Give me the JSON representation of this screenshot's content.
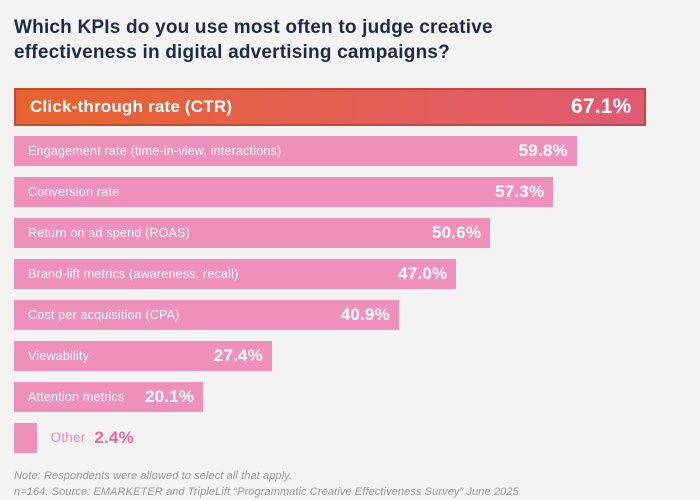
{
  "title": "Which KPIs do you use most often to judge creative effectiveness in digital advertising campaigns?",
  "chart_data": {
    "type": "bar",
    "orientation": "horizontal",
    "title": "Which KPIs do you use most often to judge creative effectiveness in digital advertising campaigns?",
    "categories": [
      "Click-through rate (CTR)",
      "Engagement rate (time-in-view, interactions)",
      "Conversion rate",
      "Return on ad spend (ROAS)",
      "Brand-lift metrics (awareness, recall)",
      "Cost per acquisition (CPA)",
      "Viewability",
      "Attention metrics",
      "Other"
    ],
    "values": [
      67.1,
      59.8,
      57.3,
      50.6,
      47.0,
      40.9,
      27.4,
      20.1,
      2.4
    ],
    "value_labels": [
      "67.1%",
      "59.8%",
      "57.3%",
      "50.6%",
      "47.0%",
      "40.9%",
      "27.4%",
      "20.1%",
      "2.4%"
    ],
    "axis_max": 71.4,
    "highlight_index": 0,
    "label_outside_index": 8,
    "grid": false,
    "legend": false,
    "xlabel": "",
    "ylabel": ""
  },
  "colors": {
    "background": "#f3f3f1",
    "title_text": "#1d2c43",
    "bar_pink": "#ee8fbc",
    "highlight_gradient_start": "#e7632e",
    "highlight_gradient_end": "#e05a72",
    "bar_text": "#ffffff",
    "other_label_text": "#ee85b8",
    "other_value_text": "#e765a5",
    "footer_text": "#95989b"
  },
  "footer": {
    "note": "Note: Respondents were allowed to select all that apply.",
    "source": "n=164. Source: EMARKETER and TripleLift “Programmatic Creative Effectiveness Survey” June 2025"
  }
}
